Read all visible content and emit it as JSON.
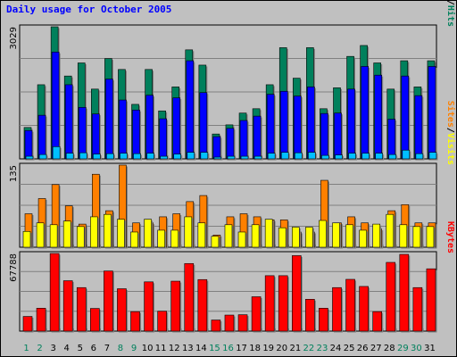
{
  "chart_data": {
    "type": "bar",
    "title": "Daily usage for October 2005",
    "categories": [
      "1",
      "2",
      "3",
      "4",
      "5",
      "6",
      "7",
      "8",
      "9",
      "10",
      "11",
      "12",
      "13",
      "14",
      "15",
      "16",
      "17",
      "18",
      "19",
      "20",
      "21",
      "22",
      "23",
      "24",
      "25",
      "26",
      "27",
      "28",
      "29",
      "30",
      "31"
    ],
    "weekend_days": [
      1,
      2,
      8,
      9,
      15,
      16,
      22,
      23,
      29,
      30
    ],
    "colors": {
      "hits": "#00805c",
      "files": "#0000ff",
      "pages": "#00c0ff",
      "visits": "#ffff00",
      "sites": "#ff8000",
      "kbytes": "#ff0000",
      "weekday": "#000000",
      "weekend": "#00805c"
    },
    "panels": [
      {
        "id": "hits-files-pages",
        "ymax_label": "3029",
        "ymax": 3029,
        "legend": [
          {
            "text": "Pages",
            "color": "#00c0ff"
          },
          {
            "text": "/",
            "color": "#000000"
          },
          {
            "text": "Files",
            "color": "#0000ff"
          },
          {
            "text": "/",
            "color": "#000000"
          },
          {
            "text": "Hits",
            "color": "#00805c"
          }
        ],
        "series": [
          {
            "name": "Hits",
            "color": "#00805c",
            "values": [
              720,
              1700,
              3029,
              1900,
              2200,
              1600,
              2300,
              2050,
              1250,
              2050,
              1100,
              1650,
              2500,
              2150,
              570,
              780,
              1050,
              1150,
              1700,
              2550,
              1850,
              2550,
              1150,
              1630,
              2350,
              2600,
              2200,
              1600,
              2250,
              1650,
              2250
            ]
          },
          {
            "name": "Files",
            "color": "#0000ff",
            "values": [
              650,
              1000,
              2450,
              1700,
              1180,
              1030,
              1830,
              1350,
              1120,
              1460,
              920,
              1400,
              2250,
              1520,
              510,
              700,
              880,
              980,
              1480,
              1550,
              1440,
              1650,
              1040,
              1050,
              1600,
              2120,
              1920,
              910,
              1900,
              1450,
              2120
            ]
          },
          {
            "name": "Pages",
            "color": "#00c0ff",
            "values": [
              60,
              100,
              280,
              130,
              140,
              110,
              120,
              130,
              120,
              130,
              60,
              110,
              150,
              150,
              40,
              60,
              60,
              60,
              130,
              150,
              140,
              150,
              80,
              90,
              130,
              130,
              130,
              100,
              200,
              120,
              150
            ]
          }
        ]
      },
      {
        "id": "visits-sites",
        "ymax_label": "135",
        "ymax": 135,
        "legend": [
          {
            "text": "Sites",
            "color": "#ff8000"
          },
          {
            "text": "/",
            "color": "#000000"
          },
          {
            "text": "Visits",
            "color": "#ffff00"
          }
        ],
        "series": [
          {
            "name": "Sites",
            "color": "#ff8000",
            "values": [
              55,
              80,
              103,
              68,
              38,
              120,
              60,
              135,
              40,
              40,
              50,
              55,
              75,
              85,
              20,
              50,
              55,
              50,
              45,
              45,
              25,
              25,
              110,
              40,
              50,
              40,
              30,
              60,
              70,
              40,
              40
            ]
          },
          {
            "name": "Visits",
            "color": "#ffff00",
            "values": [
              26,
              40,
              37,
              43,
              34,
              50,
              54,
              46,
              25,
              46,
              28,
              28,
              50,
              40,
              18,
              37,
              25,
              37,
              46,
              32,
              33,
              33,
              44,
              40,
              37,
              28,
              38,
              54,
              37,
              34,
              34
            ]
          }
        ]
      },
      {
        "id": "kbytes",
        "ymax_label": "67788",
        "ymax": 67788,
        "legend": [
          {
            "text": "KBytes",
            "color": "#ff0000"
          }
        ],
        "series": [
          {
            "name": "KBytes",
            "color": "#ff0000",
            "values": [
              12800,
              20000,
              67788,
              44000,
              38000,
              19800,
              52500,
              37000,
              17000,
              43000,
              17400,
              43600,
              59000,
              45000,
              9700,
              14000,
              14300,
              30000,
              48400,
              48400,
              65900,
              27800,
              20000,
              38000,
              45200,
              39000,
              17000,
              60000,
              67000,
              38000,
              54400
            ]
          }
        ]
      }
    ]
  }
}
